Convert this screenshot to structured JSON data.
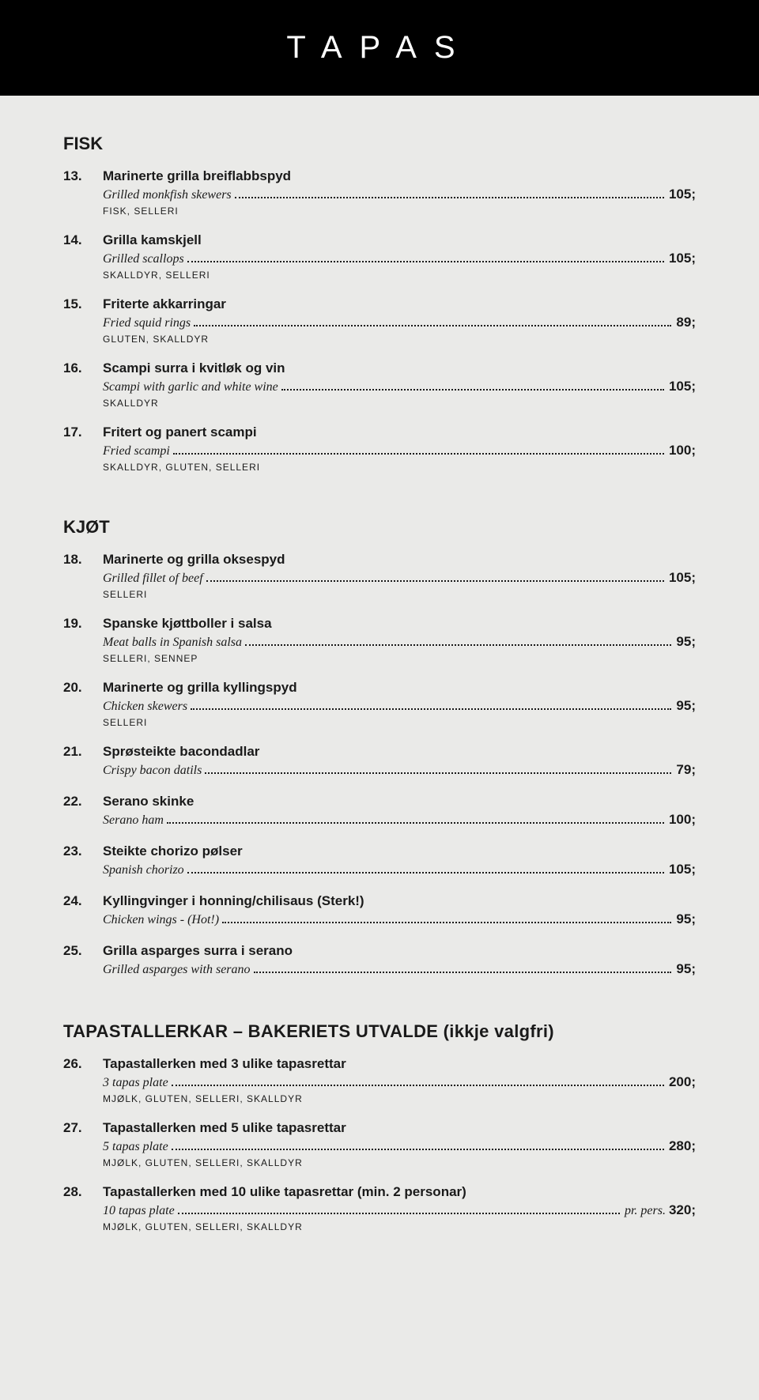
{
  "banner": "TAPAS",
  "sections": [
    {
      "heading": "FISK",
      "items": [
        {
          "num": "13.",
          "name": "Marinerte grilla breiflabbspyd",
          "sub": "Grilled monkfish skewers",
          "price": "105;",
          "allergens": "FISK, SELLERI"
        },
        {
          "num": "14.",
          "name": "Grilla kamskjell",
          "sub": "Grilled scallops",
          "price": "105;",
          "allergens": "SKALLDYR, SELLERI"
        },
        {
          "num": "15.",
          "name": "Friterte akkarringar",
          "sub": "Fried squid rings",
          "price": "89;",
          "allergens": "GLUTEN, SKALLDYR"
        },
        {
          "num": "16.",
          "name": "Scampi surra i kvitløk og vin",
          "sub": "Scampi with garlic and white wine",
          "price": "105;",
          "allergens": "SKALLDYR"
        },
        {
          "num": "17.",
          "name": "Fritert og panert scampi",
          "sub": "Fried scampi",
          "price": "100;",
          "allergens": "SKALLDYR, GLUTEN, SELLERI"
        }
      ]
    },
    {
      "heading": "KJØT",
      "items": [
        {
          "num": "18.",
          "name": "Marinerte og grilla oksespyd",
          "sub": "Grilled fillet of beef",
          "price": "105;",
          "allergens": "SELLERI"
        },
        {
          "num": "19.",
          "name": "Spanske kjøttboller i salsa",
          "sub": "Meat balls in Spanish salsa",
          "price": "95;",
          "allergens": "SELLERI, SENNEP"
        },
        {
          "num": "20.",
          "name": "Marinerte og grilla kyllingspyd",
          "sub": "Chicken skewers",
          "price": "95;",
          "allergens": "SELLERI"
        },
        {
          "num": "21.",
          "name": "Sprøsteikte bacondadlar",
          "sub": "Crispy bacon datils",
          "price": "79;",
          "allergens": ""
        },
        {
          "num": "22.",
          "name": "Serano skinke",
          "sub": "Serano ham",
          "price": "100;",
          "allergens": ""
        },
        {
          "num": "23.",
          "name": "Steikte chorizo pølser",
          "sub": "Spanish chorizo",
          "price": "105;",
          "allergens": ""
        },
        {
          "num": "24.",
          "name": "Kyllingvinger i honning/chilisaus (Sterk!)",
          "sub": "Chicken wings - (Hot!)",
          "price": "95;",
          "allergens": ""
        },
        {
          "num": "25.",
          "name": "Grilla asparges surra i serano",
          "sub": "Grilled asparges with serano",
          "price": "95;",
          "allergens": ""
        }
      ]
    },
    {
      "heading": "TAPASTALLERKAR – BAKERIETS UTVALDE (ikkje valgfri)",
      "items": [
        {
          "num": "26.",
          "name": "Tapastallerken med 3 ulike tapasrettar",
          "sub": "3 tapas plate",
          "price": "200;",
          "allergens": "MJØLK, GLUTEN, SELLERI, SKALLDYR"
        },
        {
          "num": "27.",
          "name": "Tapastallerken med 5 ulike tapasrettar",
          "sub": "5 tapas plate",
          "price": "280;",
          "allergens": "MJØLK, GLUTEN, SELLERI, SKALLDYR"
        },
        {
          "num": "28.",
          "name": "Tapastallerken med 10 ulike tapasrettar (min. 2 personar)",
          "sub": "10 tapas plate",
          "price": "320;",
          "price_prefix": "pr. pers. ",
          "allergens": "MJØLK, GLUTEN, SELLERI, SKALLDYR"
        }
      ]
    }
  ]
}
